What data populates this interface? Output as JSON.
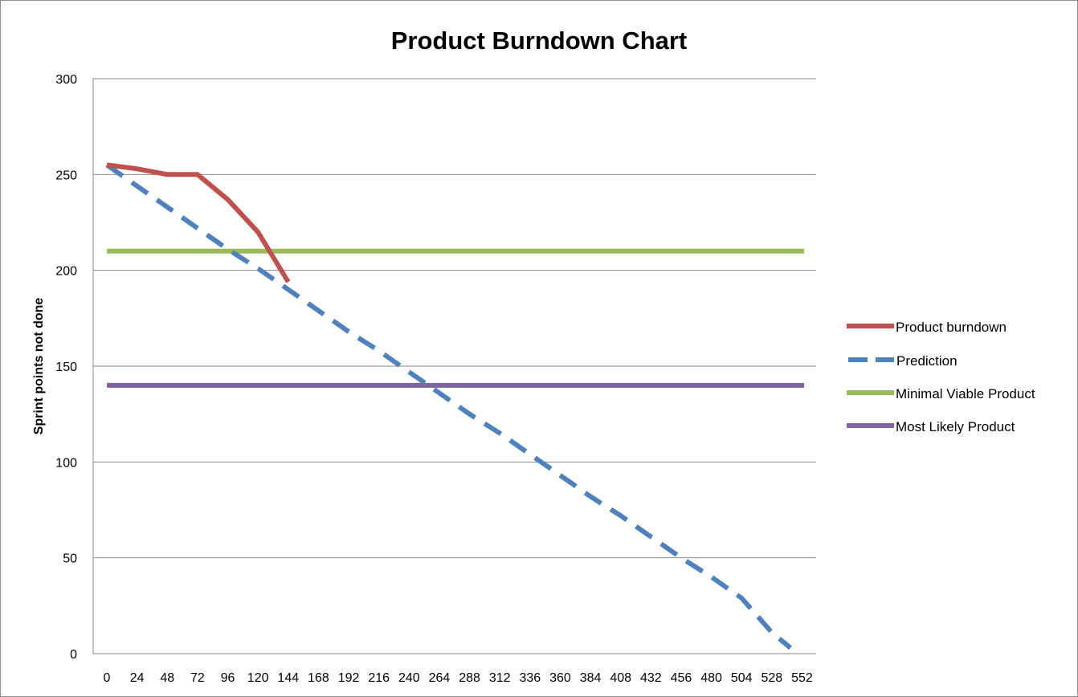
{
  "chart_data": {
    "type": "line",
    "title": "Product Burndown Chart",
    "xlabel": "",
    "ylabel": "Sprint points not done",
    "x_ticks": [
      "0",
      "24",
      "48",
      "72",
      "96",
      "120",
      "144",
      "168",
      "192",
      "216",
      "240",
      "264",
      "288",
      "312",
      "336",
      "360",
      "384",
      "408",
      "432",
      "456",
      "480",
      "504",
      "528",
      "552"
    ],
    "ylim": [
      0,
      300
    ],
    "y_ticks": [
      0,
      50,
      100,
      150,
      200,
      250,
      300
    ],
    "grid": true,
    "legend_position": "right",
    "series": [
      {
        "name": "Product burndown",
        "color": "#c0504d",
        "style": "solid",
        "x": [
          0,
          24,
          48,
          72,
          96,
          120,
          144
        ],
        "y": [
          255,
          253,
          250,
          250,
          237,
          220,
          194
        ]
      },
      {
        "name": "Prediction",
        "color": "#4f81bd",
        "style": "dashed",
        "x": [
          0,
          24,
          48,
          72,
          96,
          120,
          144,
          168,
          192,
          216,
          240,
          264,
          288,
          312,
          336,
          360,
          384,
          408,
          432,
          456,
          480,
          504,
          528,
          552
        ],
        "y": [
          255,
          244,
          233,
          222,
          211,
          201,
          190,
          179,
          168,
          158,
          147,
          136,
          125,
          115,
          104,
          93,
          82,
          72,
          61,
          50,
          40,
          29,
          11,
          3
        ]
      },
      {
        "name": "Minimal Viable Product",
        "color": "#9bbb59",
        "style": "solid",
        "x": [
          0,
          552
        ],
        "y": [
          210,
          210
        ]
      },
      {
        "name": "Most Likely Product",
        "color": "#8064a2",
        "style": "solid",
        "x": [
          0,
          552
        ],
        "y": [
          140,
          140
        ]
      }
    ]
  }
}
